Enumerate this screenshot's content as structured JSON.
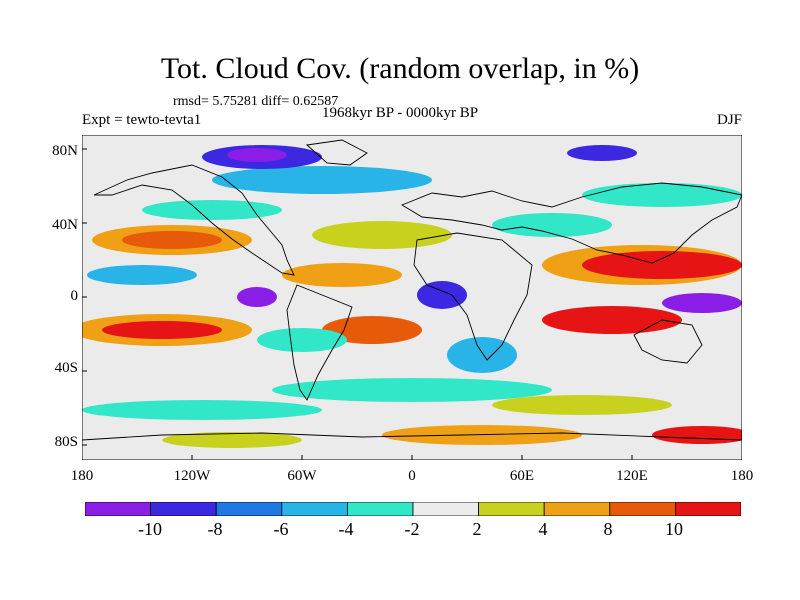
{
  "title": "Tot. Cloud Cov. (random overlap, in %)",
  "stats": "rmsd= 5.75281 diff= 0.62587",
  "experiment": "Expt = tewto-tevta1",
  "period": "1968kyr BP - 0000kyr BP",
  "season": "DJF",
  "lat_ticks": [
    "80N",
    "40N",
    "0",
    "40S",
    "80S"
  ],
  "lon_ticks": [
    "180",
    "120W",
    "60W",
    "0",
    "60E",
    "120E",
    "180"
  ],
  "colorbar": {
    "labels": [
      "-10",
      "-8",
      "-6",
      "-4",
      "-2",
      "2",
      "4",
      "8",
      "10"
    ],
    "colors": [
      "#8a1ee6",
      "#3c28e0",
      "#1e78e6",
      "#28b4e6",
      "#32e6c8",
      "#ebebeb",
      "#c8d21e",
      "#f0a014",
      "#e65a0a",
      "#e61414"
    ]
  }
}
